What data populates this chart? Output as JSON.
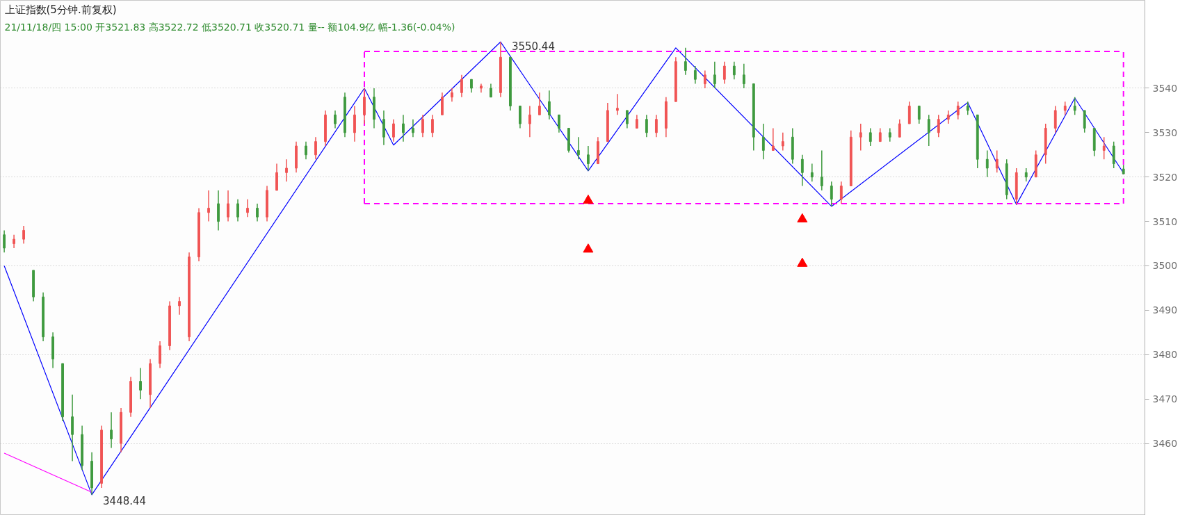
{
  "chart_data": {
    "type": "candlestick",
    "title": "上证指数(5分钟.前复权)",
    "subtitle": "21/11/18/四 15:00 开3521.83 高3522.72 低3520.71 收3520.71 量-- 额104.9亿 幅-1.36(-0.04%)",
    "categories": [
      null,
      null,
      null,
      null,
      null,
      null,
      null,
      null,
      null,
      null,
      null,
      null,
      null,
      null,
      null,
      null,
      null,
      null,
      null,
      null,
      null,
      null,
      null,
      null,
      null,
      null,
      null,
      null,
      null,
      null,
      null,
      null,
      null,
      null,
      null,
      null,
      null,
      null,
      null,
      null,
      null,
      null,
      null,
      null,
      null,
      null,
      null,
      null,
      null,
      null,
      null,
      null,
      null,
      null,
      null,
      null,
      null,
      null,
      null,
      null,
      null,
      null,
      null,
      null,
      null,
      null,
      null,
      null,
      null,
      null,
      null,
      null,
      null,
      null,
      null,
      null,
      null,
      null,
      null,
      null,
      null,
      null,
      null,
      null,
      null,
      null,
      null,
      null,
      null,
      null,
      null,
      null,
      null,
      null,
      null,
      null,
      null,
      null,
      null,
      null,
      null,
      null,
      null,
      null,
      null,
      null,
      null,
      null,
      null,
      null,
      null,
      null,
      null,
      null,
      null,
      null
    ],
    "ohlc": [
      [
        3507,
        3508,
        3503,
        3504
      ],
      [
        3505,
        3507,
        3504,
        3506
      ],
      [
        3506,
        3509,
        3505,
        3508
      ],
      [
        3499,
        3499,
        3492,
        3493
      ],
      [
        3493,
        3494,
        3483,
        3484
      ],
      [
        3484,
        3485,
        3477,
        3479
      ],
      [
        3478,
        3478,
        3465,
        3466
      ],
      [
        3466,
        3471,
        3456,
        3462
      ],
      [
        3462,
        3464,
        3454,
        3455
      ],
      [
        3456,
        3458,
        3448.44,
        3450
      ],
      [
        3451,
        3464,
        3450,
        3463
      ],
      [
        3463,
        3467,
        3459,
        3461
      ],
      [
        3460,
        3468,
        3458,
        3467
      ],
      [
        3467,
        3475,
        3466,
        3474
      ],
      [
        3474,
        3477,
        3470,
        3472
      ],
      [
        3471,
        3479,
        3468,
        3478
      ],
      [
        3478,
        3483,
        3477,
        3482
      ],
      [
        3482,
        3492,
        3481,
        3491
      ],
      [
        3491,
        3493,
        3489,
        3492
      ],
      [
        3484,
        3503,
        3483,
        3502
      ],
      [
        3502,
        3513,
        3501,
        3512
      ],
      [
        3512,
        3517,
        3510,
        3513
      ],
      [
        3514,
        3517,
        3508,
        3510
      ],
      [
        3511,
        3517,
        3510,
        3514
      ],
      [
        3514,
        3515,
        3510,
        3511
      ],
      [
        3512,
        3515,
        3511,
        3513
      ],
      [
        3513,
        3514,
        3510,
        3511
      ],
      [
        3511,
        3518,
        3510,
        3517
      ],
      [
        3517,
        3523,
        3517,
        3521
      ],
      [
        3521,
        3524,
        3519,
        3522
      ],
      [
        3522,
        3528,
        3521,
        3527
      ],
      [
        3527,
        3528,
        3524,
        3525
      ],
      [
        3525,
        3529,
        3524,
        3528
      ],
      [
        3528,
        3535,
        3527,
        3534
      ],
      [
        3534,
        3535,
        3531,
        3532
      ],
      [
        3538,
        3539,
        3529,
        3530
      ],
      [
        3530,
        3536,
        3528,
        3534
      ],
      [
        3534,
        3540,
        3532,
        3538
      ],
      [
        3538,
        3540,
        3531,
        3533
      ],
      [
        3533,
        3535,
        3527.2,
        3529
      ],
      [
        3529,
        3533,
        3528,
        3532
      ],
      [
        3532,
        3534,
        3528,
        3530
      ],
      [
        3531,
        3533,
        3529,
        3530
      ],
      [
        3530,
        3534,
        3529,
        3533
      ],
      [
        3530,
        3534,
        3529,
        3533
      ],
      [
        3534,
        3539,
        3534,
        3538
      ],
      [
        3538,
        3540,
        3537,
        3539
      ],
      [
        3539,
        3543,
        3538,
        3542
      ],
      [
        3542,
        3542,
        3539,
        3540
      ],
      [
        3540,
        3541,
        3539,
        3540.5
      ],
      [
        3540,
        3541,
        3538,
        3538
      ],
      [
        3539,
        3550.44,
        3538,
        3547
      ],
      [
        3547,
        3547,
        3535,
        3536
      ],
      [
        3536,
        3536,
        3531,
        3532
      ],
      [
        3532,
        3536,
        3529,
        3534
      ],
      [
        3534,
        3539,
        3534,
        3536
      ],
      [
        3537,
        3539.5,
        3533,
        3534
      ],
      [
        3534,
        3534,
        3530,
        3531
      ],
      [
        3531,
        3531,
        3525.5,
        3526
      ],
      [
        3526,
        3529,
        3524,
        3525
      ],
      [
        3525,
        3527,
        3521.4,
        3523
      ],
      [
        3523,
        3529,
        3523,
        3528
      ],
      [
        3528,
        3536.7,
        3528,
        3535
      ],
      [
        3535,
        3538.7,
        3534,
        3535.5
      ],
      [
        3535,
        3535,
        3531,
        3532
      ],
      [
        3531,
        3534,
        3531,
        3533
      ],
      [
        3533,
        3534,
        3529,
        3530
      ],
      [
        3530,
        3534,
        3529,
        3533
      ],
      [
        3531,
        3538,
        3529,
        3537
      ],
      [
        3537,
        3547,
        3537,
        3546
      ],
      [
        3546,
        3549.1,
        3543,
        3544
      ],
      [
        3544,
        3545,
        3541,
        3542
      ],
      [
        3541,
        3544,
        3540,
        3543
      ],
      [
        3543,
        3546,
        3540,
        3541
      ],
      [
        3542,
        3546,
        3541,
        3545
      ],
      [
        3545,
        3546,
        3542,
        3543
      ],
      [
        3543,
        3545.5,
        3540,
        3541
      ],
      [
        3541,
        3541,
        3526,
        3529
      ],
      [
        3529,
        3532,
        3524,
        3526
      ],
      [
        3526,
        3531,
        3526,
        3527
      ],
      [
        3527,
        3530,
        3526,
        3528
      ],
      [
        3529,
        3531,
        3523,
        3524
      ],
      [
        3524,
        3525,
        3518,
        3521
      ],
      [
        3521,
        3523,
        3519,
        3520
      ],
      [
        3520,
        3526,
        3517,
        3518
      ],
      [
        3518,
        3519,
        3513.4,
        3515
      ],
      [
        3515,
        3519,
        3514,
        3518
      ],
      [
        3518,
        3530.5,
        3518,
        3529
      ],
      [
        3529,
        3532,
        3526,
        3530
      ],
      [
        3530,
        3531,
        3527,
        3528
      ],
      [
        3528,
        3531,
        3528,
        3530
      ],
      [
        3530,
        3531,
        3528,
        3529
      ],
      [
        3529,
        3533,
        3529,
        3532
      ],
      [
        3532,
        3537,
        3532,
        3536
      ],
      [
        3536,
        3536,
        3532,
        3533
      ],
      [
        3533,
        3534,
        3527,
        3530
      ],
      [
        3530,
        3534,
        3529,
        3533
      ],
      [
        3533,
        3535,
        3532,
        3534
      ],
      [
        3534,
        3537,
        3533,
        3536
      ],
      [
        3536,
        3537,
        3534,
        3535
      ],
      [
        3534,
        3534,
        3522,
        3524
      ],
      [
        3524,
        3526,
        3520,
        3522
      ],
      [
        3522,
        3526,
        3521,
        3524
      ],
      [
        3523,
        3524,
        3515,
        3516
      ],
      [
        3515,
        3522,
        3513.8,
        3521
      ],
      [
        3521,
        3522,
        3519,
        3520
      ],
      [
        3520,
        3526,
        3520,
        3525
      ],
      [
        3525,
        3532,
        3523,
        3531
      ],
      [
        3531,
        3536,
        3530,
        3535
      ],
      [
        3535,
        3537,
        3534,
        3536
      ],
      [
        3536,
        3538,
        3534,
        3535
      ],
      [
        3535,
        3535,
        3530,
        3531
      ],
      [
        3531,
        3531,
        3524.7,
        3526
      ],
      [
        3526,
        3529,
        3524,
        3527
      ],
      [
        3527,
        3528,
        3522,
        3523
      ],
      [
        3521.83,
        3522.72,
        3520.71,
        3520.71
      ]
    ],
    "series": [
      {
        "type": "line",
        "color": "#0000ff",
        "line_style": "solid",
        "values": [
          3500,
          null,
          null,
          null,
          null,
          null,
          null,
          null,
          null,
          3448.44,
          null,
          null,
          null,
          null,
          null,
          null,
          null,
          null,
          null,
          null,
          null,
          null,
          null,
          null,
          null,
          null,
          null,
          null,
          null,
          null,
          null,
          null,
          null,
          null,
          null,
          null,
          null,
          3540,
          null,
          null,
          3527.2,
          null,
          null,
          null,
          null,
          null,
          null,
          null,
          null,
          null,
          null,
          3550.44,
          null,
          null,
          null,
          null,
          null,
          null,
          null,
          null,
          3521.4,
          null,
          null,
          null,
          null,
          null,
          null,
          null,
          null,
          3549.1,
          null,
          null,
          null,
          null,
          null,
          null,
          null,
          null,
          null,
          null,
          null,
          null,
          null,
          null,
          null,
          3513.4,
          null,
          null,
          null,
          null,
          null,
          null,
          null,
          null,
          null,
          null,
          null,
          null,
          null,
          3536.8,
          null,
          null,
          null,
          null,
          3513.8,
          null,
          null,
          null,
          null,
          null,
          3537.8,
          null,
          null,
          null,
          null,
          3520.9
        ]
      },
      {
        "type": "line",
        "color": "#ff00ff",
        "line_style": "solid",
        "values": [
          3457.8,
          null,
          null,
          null,
          null,
          null,
          null,
          null,
          null,
          3449,
          null,
          null,
          null,
          null,
          null,
          null,
          null,
          null,
          null,
          null,
          null,
          null,
          null,
          null,
          null,
          null,
          null,
          null,
          null,
          null,
          null,
          null,
          null,
          null,
          null,
          null,
          null,
          null,
          null,
          null,
          null,
          null,
          null,
          null,
          null,
          null,
          null,
          null,
          null,
          null,
          null,
          null,
          null,
          null,
          null,
          null,
          null,
          null,
          null,
          null,
          null,
          null,
          null,
          null,
          null,
          null,
          null,
          null,
          null,
          null,
          null,
          null,
          null,
          null,
          null,
          null,
          null,
          null,
          null,
          null,
          null,
          null,
          null,
          null,
          null,
          null,
          null,
          null,
          null,
          null,
          null,
          null,
          null,
          null,
          null,
          null,
          null,
          null,
          null,
          null,
          null,
          null,
          null,
          null,
          null,
          null,
          null,
          null,
          null,
          null,
          null,
          null,
          null,
          null,
          null,
          null
        ]
      },
      {
        "type": "line",
        "color": "#ff00ff",
        "line_style": "dashed",
        "errors": [
          null,
          null,
          null,
          null,
          null,
          null,
          null,
          null,
          null,
          null,
          null,
          null,
          null,
          null,
          null,
          null,
          null,
          null,
          null,
          null,
          null,
          null,
          null,
          null,
          null,
          null,
          null,
          null,
          null,
          null,
          null,
          null,
          null,
          null,
          null,
          null,
          null,
          [
            3514,
            3548.3
          ],
          null,
          null,
          null,
          null,
          null,
          null,
          null,
          null,
          null,
          null,
          null,
          null,
          null,
          null,
          null,
          null,
          null,
          null,
          null,
          null,
          null,
          null,
          null,
          null,
          null,
          null,
          null,
          null,
          null,
          null,
          null,
          null,
          null,
          null,
          null,
          null,
          null,
          null,
          null,
          null,
          null,
          null,
          null,
          null,
          null,
          null,
          null,
          null,
          null,
          null,
          null,
          null,
          null,
          null,
          null,
          null,
          null,
          null,
          null,
          null,
          null,
          null,
          null,
          null,
          null,
          null,
          null,
          null,
          null,
          null,
          null,
          null,
          null,
          null,
          null,
          null,
          null,
          [
            3514,
            3548.3
          ]
        ],
        "values": [
          null,
          null,
          null,
          null,
          null,
          null,
          null,
          null,
          null,
          null,
          null,
          null,
          null,
          null,
          null,
          null,
          null,
          null,
          null,
          null,
          null,
          null,
          null,
          null,
          null,
          null,
          null,
          null,
          null,
          null,
          null,
          null,
          null,
          null,
          null,
          null,
          null,
          3548.3,
          null,
          null,
          null,
          null,
          null,
          null,
          null,
          null,
          null,
          null,
          null,
          null,
          null,
          null,
          null,
          null,
          null,
          null,
          null,
          null,
          null,
          null,
          null,
          null,
          null,
          null,
          null,
          null,
          null,
          null,
          null,
          null,
          null,
          null,
          null,
          null,
          null,
          null,
          null,
          null,
          null,
          null,
          null,
          null,
          null,
          null,
          null,
          null,
          null,
          null,
          null,
          null,
          null,
          null,
          null,
          null,
          null,
          null,
          null,
          null,
          null,
          null,
          null,
          null,
          null,
          null,
          null,
          null,
          null,
          null,
          null,
          null,
          null,
          null,
          null,
          null,
          null,
          3548.3
        ]
      },
      {
        "type": "line",
        "color": "#ff00ff",
        "line_style": "dashed",
        "values": [
          null,
          null,
          null,
          null,
          null,
          null,
          null,
          null,
          null,
          null,
          null,
          null,
          null,
          null,
          null,
          null,
          null,
          null,
          null,
          null,
          null,
          null,
          null,
          null,
          null,
          null,
          null,
          null,
          null,
          null,
          null,
          null,
          null,
          null,
          null,
          null,
          null,
          3514,
          null,
          null,
          null,
          null,
          null,
          null,
          null,
          null,
          null,
          null,
          null,
          null,
          null,
          null,
          null,
          null,
          null,
          null,
          null,
          null,
          null,
          null,
          null,
          null,
          null,
          null,
          null,
          null,
          null,
          null,
          null,
          null,
          null,
          null,
          null,
          null,
          null,
          null,
          null,
          null,
          null,
          null,
          null,
          null,
          null,
          null,
          null,
          null,
          null,
          null,
          null,
          null,
          null,
          null,
          null,
          null,
          null,
          null,
          null,
          null,
          null,
          null,
          null,
          null,
          null,
          null,
          null,
          null,
          null,
          null,
          null,
          null,
          null,
          null,
          null,
          null,
          null,
          3514
        ]
      },
      {
        "type": "scatter",
        "color": "#ff0000",
        "marker": "triangle",
        "values": [
          null,
          null,
          null,
          null,
          null,
          null,
          null,
          null,
          null,
          null,
          null,
          null,
          null,
          null,
          null,
          null,
          null,
          null,
          null,
          null,
          null,
          null,
          null,
          null,
          null,
          null,
          null,
          null,
          null,
          null,
          null,
          null,
          null,
          null,
          null,
          null,
          null,
          null,
          null,
          null,
          null,
          null,
          null,
          null,
          null,
          null,
          null,
          null,
          null,
          null,
          null,
          null,
          null,
          null,
          null,
          null,
          null,
          null,
          null,
          null,
          3514.7,
          null,
          null,
          null,
          null,
          null,
          null,
          null,
          null,
          null,
          null,
          null,
          null,
          null,
          null,
          null,
          null,
          null,
          null,
          null,
          null,
          null,
          3510.5,
          null,
          null,
          null,
          null,
          null,
          null,
          null,
          null,
          null,
          null,
          null,
          null,
          null,
          null,
          null,
          null,
          null,
          null,
          null,
          null,
          null,
          null,
          null,
          null,
          null,
          null,
          null,
          null,
          null,
          null,
          null,
          null,
          null
        ]
      },
      {
        "type": "scatter",
        "color": "#ff0000",
        "marker": "triangle",
        "values": [
          null,
          null,
          null,
          null,
          null,
          null,
          null,
          null,
          null,
          null,
          null,
          null,
          null,
          null,
          null,
          null,
          null,
          null,
          null,
          null,
          null,
          null,
          null,
          null,
          null,
          null,
          null,
          null,
          null,
          null,
          null,
          null,
          null,
          null,
          null,
          null,
          null,
          null,
          null,
          null,
          null,
          null,
          null,
          null,
          null,
          null,
          null,
          null,
          null,
          null,
          null,
          null,
          null,
          null,
          null,
          null,
          null,
          null,
          null,
          null,
          3503.7,
          null,
          null,
          null,
          null,
          null,
          null,
          null,
          null,
          null,
          null,
          null,
          null,
          null,
          null,
          null,
          null,
          null,
          null,
          null,
          null,
          null,
          3500.5,
          null,
          null,
          null,
          null,
          null,
          null,
          null,
          null,
          null,
          null,
          null,
          null,
          null,
          null,
          null,
          null,
          null,
          null,
          null,
          null,
          null,
          null,
          null,
          null,
          null,
          null,
          null,
          null,
          null,
          null,
          null,
          null,
          null
        ]
      }
    ],
    "annotations": [
      "3550.44",
      "3448.44"
    ],
    "ylim": [
      3443.8,
      3559.8
    ],
    "yticks": [
      3460,
      3470,
      3480,
      3490,
      3500,
      3510,
      3520,
      3530,
      3540
    ],
    "grid": true
  }
}
